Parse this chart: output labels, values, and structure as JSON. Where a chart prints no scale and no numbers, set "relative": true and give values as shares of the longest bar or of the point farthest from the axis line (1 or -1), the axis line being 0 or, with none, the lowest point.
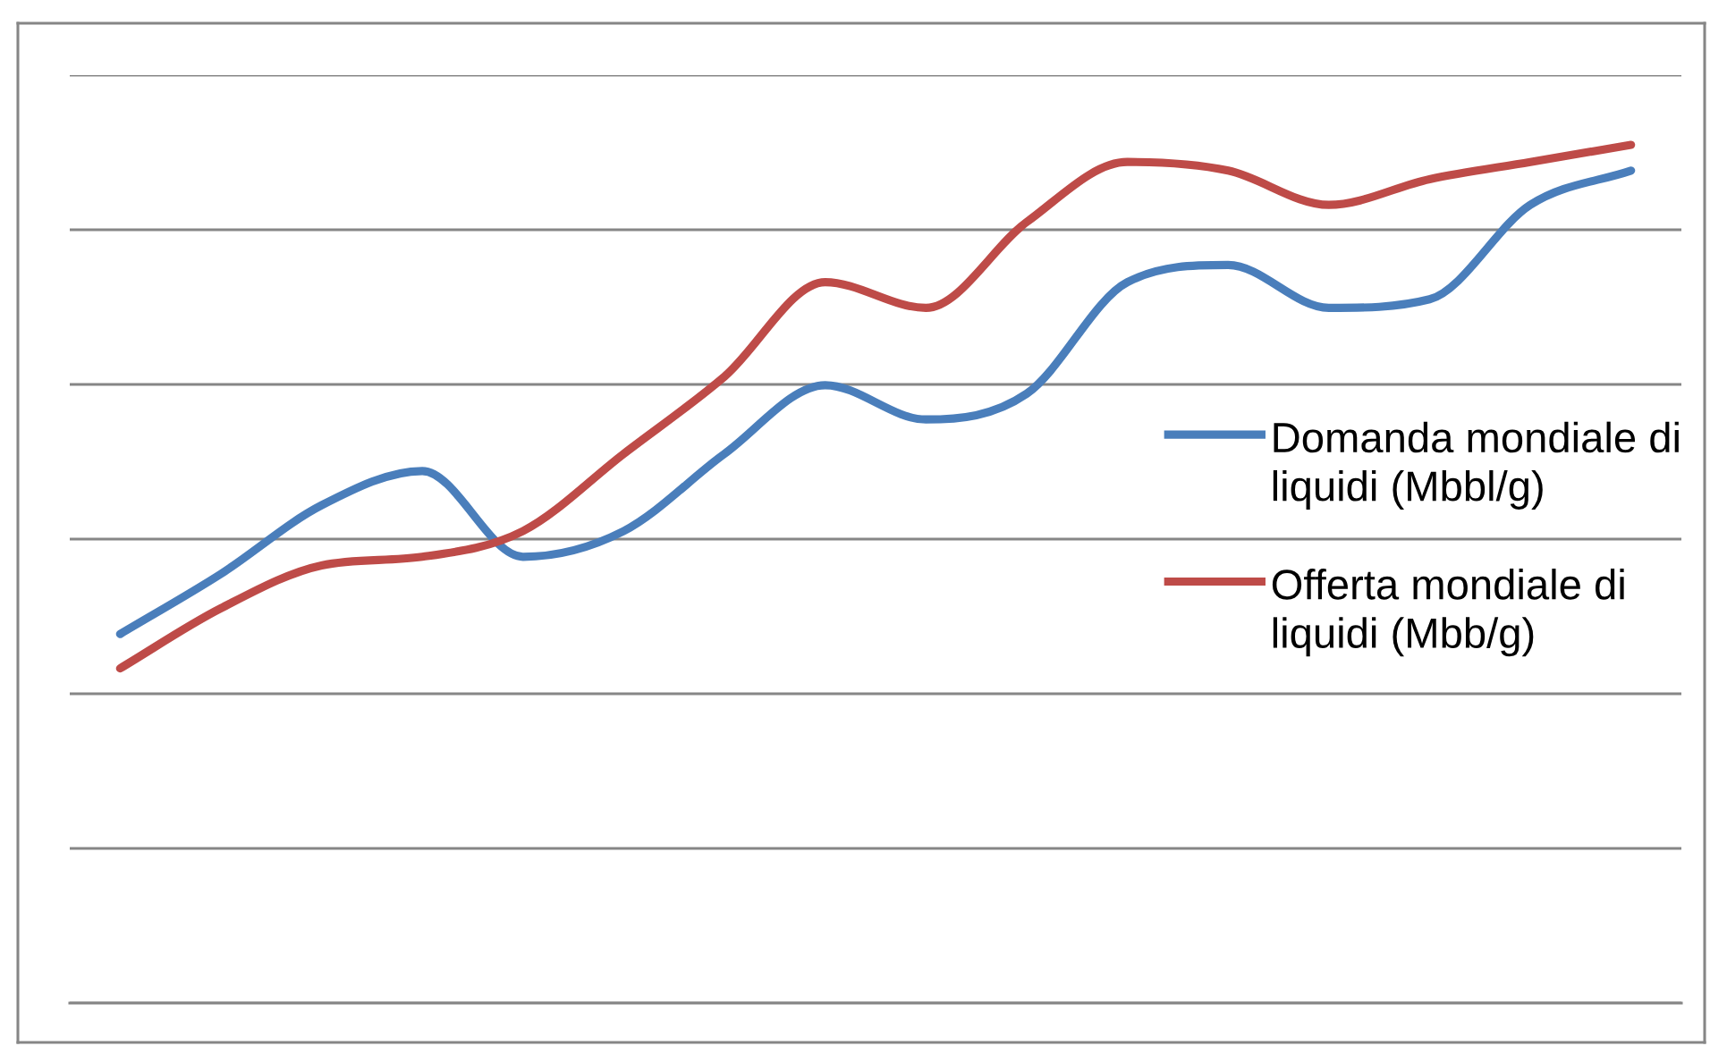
{
  "chart_data": {
    "type": "line",
    "relative": true,
    "categories": [
      null,
      null,
      null,
      null,
      null,
      null,
      null,
      null,
      null,
      null,
      null,
      null,
      null,
      null,
      null,
      null
    ],
    "series": [
      {
        "name": "Domanda mondiale di liquidi (Mbbl/g)",
        "color": "#4a7ebb",
        "values": [
          0.43,
          0.5,
          0.58,
          0.62,
          0.52,
          0.55,
          0.64,
          0.72,
          0.68,
          0.71,
          0.84,
          0.86,
          0.81,
          0.82,
          0.93,
          0.97
        ]
      },
      {
        "name": "Offerta mondiale di liquidi (Mbb/g)",
        "color": "#be4b48",
        "values": [
          0.39,
          0.46,
          0.51,
          0.52,
          0.55,
          0.64,
          0.73,
          0.84,
          0.81,
          0.91,
          0.98,
          0.97,
          0.93,
          0.96,
          0.98,
          1
        ]
      }
    ],
    "grid": "y",
    "legend": "right"
  }
}
